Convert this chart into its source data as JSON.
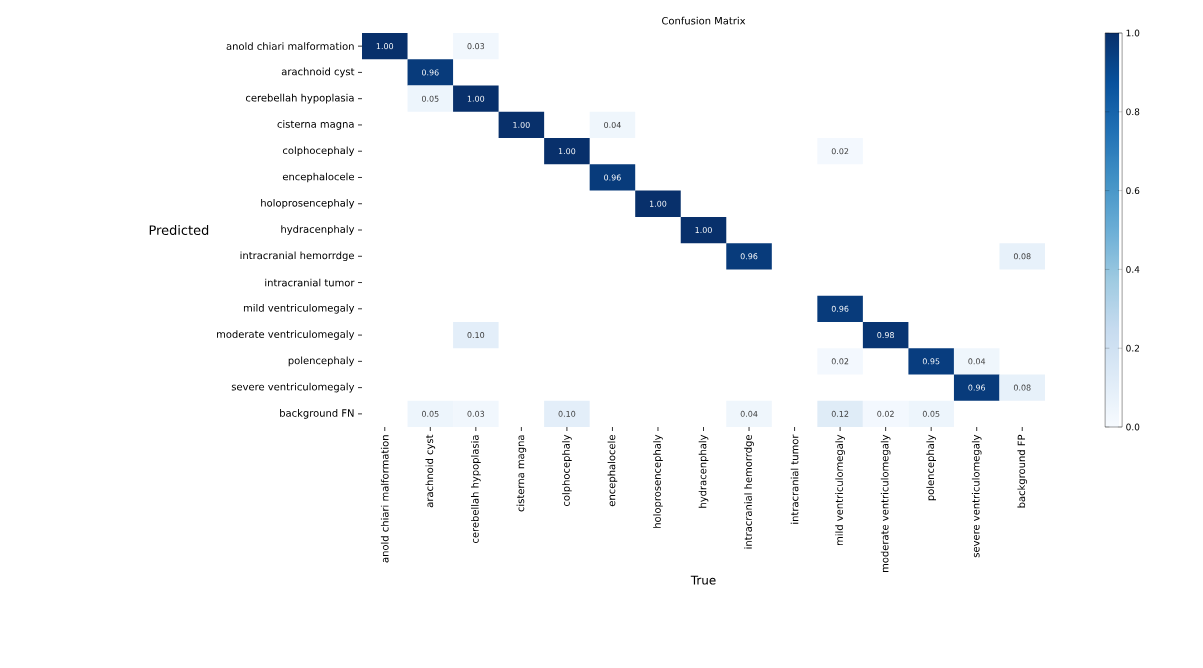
{
  "chart_data": {
    "type": "heatmap",
    "title": "Confusion Matrix",
    "xlabel": "True",
    "ylabel": "Predicted",
    "categories": [
      "anold chiari malformation",
      "arachnoid cyst",
      "cerebellah hypoplasia",
      "cisterna magna",
      "colphocephaly",
      "encephalocele",
      "holoprosencephaly",
      "hydracenphaly",
      "intracranial hemorrdge",
      "intracranial tumor",
      "mild ventriculomegaly",
      "moderate ventriculomegaly",
      "polencephaly",
      "severe ventriculomegaly",
      "background FP"
    ],
    "y_categories": [
      "anold chiari malformation",
      "arachnoid cyst",
      "cerebellah hypoplasia",
      "cisterna magna",
      "colphocephaly",
      "encephalocele",
      "holoprosencephaly",
      "hydracenphaly",
      "intracranial hemorrdge",
      "intracranial tumor",
      "mild ventriculomegaly",
      "moderate ventriculomegaly",
      "polencephaly",
      "severe ventriculomegaly",
      "background FN"
    ],
    "cells": [
      [
        1.0,
        null,
        0.03,
        null,
        null,
        null,
        null,
        null,
        null,
        null,
        null,
        null,
        null,
        null,
        null
      ],
      [
        null,
        0.96,
        null,
        null,
        null,
        null,
        null,
        null,
        null,
        null,
        null,
        null,
        null,
        null,
        null
      ],
      [
        null,
        0.05,
        1.0,
        null,
        null,
        null,
        null,
        null,
        null,
        null,
        null,
        null,
        null,
        null,
        null
      ],
      [
        null,
        null,
        null,
        1.0,
        null,
        0.04,
        null,
        null,
        null,
        null,
        null,
        null,
        null,
        null,
        null
      ],
      [
        null,
        null,
        null,
        null,
        1.0,
        null,
        null,
        null,
        null,
        null,
        0.02,
        null,
        null,
        null,
        null
      ],
      [
        null,
        null,
        null,
        null,
        null,
        0.96,
        null,
        null,
        null,
        null,
        null,
        null,
        null,
        null,
        null
      ],
      [
        null,
        null,
        null,
        null,
        null,
        null,
        1.0,
        null,
        null,
        null,
        null,
        null,
        null,
        null,
        null
      ],
      [
        null,
        null,
        null,
        null,
        null,
        null,
        null,
        1.0,
        null,
        null,
        null,
        null,
        null,
        null,
        null
      ],
      [
        null,
        null,
        null,
        null,
        null,
        null,
        null,
        null,
        0.96,
        null,
        null,
        null,
        null,
        null,
        0.08
      ],
      [
        null,
        null,
        null,
        null,
        null,
        null,
        null,
        null,
        null,
        null,
        null,
        null,
        null,
        null,
        null
      ],
      [
        null,
        null,
        null,
        null,
        null,
        null,
        null,
        null,
        null,
        null,
        0.96,
        null,
        null,
        null,
        null
      ],
      [
        null,
        null,
        0.1,
        null,
        null,
        null,
        null,
        null,
        null,
        null,
        null,
        0.98,
        null,
        null,
        null
      ],
      [
        null,
        null,
        null,
        null,
        null,
        null,
        null,
        null,
        null,
        null,
        0.02,
        null,
        0.95,
        0.04,
        null
      ],
      [
        null,
        null,
        null,
        null,
        null,
        null,
        null,
        null,
        null,
        null,
        null,
        null,
        null,
        0.96,
        0.08
      ],
      [
        null,
        0.05,
        0.03,
        null,
        0.1,
        null,
        null,
        null,
        0.04,
        null,
        0.12,
        0.02,
        0.05,
        null,
        null
      ]
    ],
    "cell_labels": [
      [
        "1.00",
        null,
        "0.03",
        null,
        null,
        null,
        null,
        null,
        null,
        null,
        null,
        null,
        null,
        null,
        null
      ],
      [
        null,
        "0.96",
        null,
        null,
        null,
        null,
        null,
        null,
        null,
        null,
        null,
        null,
        null,
        null,
        null
      ],
      [
        null,
        "0.05",
        "1.00",
        null,
        null,
        null,
        null,
        null,
        null,
        null,
        null,
        null,
        null,
        null,
        null
      ],
      [
        null,
        null,
        null,
        "1.00",
        null,
        "0.04",
        null,
        null,
        null,
        null,
        null,
        null,
        null,
        null,
        null
      ],
      [
        null,
        null,
        null,
        null,
        "1.00",
        null,
        null,
        null,
        null,
        null,
        "0.02",
        null,
        null,
        null,
        null
      ],
      [
        null,
        null,
        null,
        null,
        null,
        "0.96",
        null,
        null,
        null,
        null,
        null,
        null,
        null,
        null,
        null
      ],
      [
        null,
        null,
        null,
        null,
        null,
        null,
        "1.00",
        null,
        null,
        null,
        null,
        null,
        null,
        null,
        null
      ],
      [
        null,
        null,
        null,
        null,
        null,
        null,
        null,
        "1.00",
        null,
        null,
        null,
        null,
        null,
        null,
        null
      ],
      [
        null,
        null,
        null,
        null,
        null,
        null,
        null,
        null,
        "0.96",
        null,
        null,
        null,
        null,
        null,
        "0.08"
      ],
      [
        null,
        null,
        null,
        null,
        null,
        null,
        null,
        null,
        null,
        null,
        null,
        null,
        null,
        null,
        null
      ],
      [
        null,
        null,
        null,
        null,
        null,
        null,
        null,
        null,
        null,
        null,
        "0.96",
        null,
        null,
        null,
        null
      ],
      [
        null,
        null,
        "0.10",
        null,
        null,
        null,
        null,
        null,
        null,
        null,
        null,
        "0.98",
        null,
        null,
        null
      ],
      [
        null,
        null,
        null,
        null,
        null,
        null,
        null,
        null,
        null,
        null,
        "0.02",
        null,
        "0.95",
        "0.04",
        null
      ],
      [
        null,
        null,
        null,
        null,
        null,
        null,
        null,
        null,
        null,
        null,
        null,
        null,
        null,
        "0.96",
        "0.08"
      ],
      [
        null,
        "0.05",
        "0.03",
        null,
        "0.10",
        null,
        null,
        null,
        "0.04",
        null,
        "0.12",
        "0.02",
        "0.05",
        null,
        null
      ]
    ],
    "clim": [
      0,
      1
    ],
    "cticks": [
      {
        "value": 0,
        "label": "0.0"
      },
      {
        "value": 0.2,
        "label": "0.2"
      },
      {
        "value": 0.4,
        "label": "0.4"
      },
      {
        "value": 0.6,
        "label": "0.6"
      },
      {
        "value": 0.8,
        "label": "0.8"
      },
      {
        "value": 1,
        "label": "1.0"
      }
    ]
  }
}
